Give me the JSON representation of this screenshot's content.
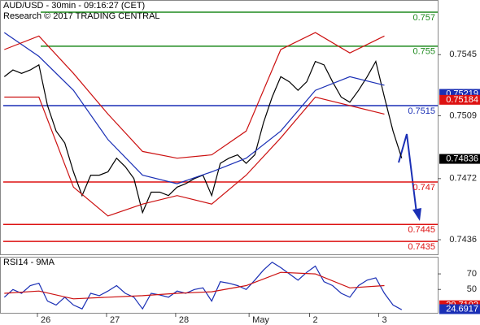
{
  "chart_data": [
    {
      "type": "line",
      "title": "AUD/USD - 30min - 09:16:27 (CET)",
      "subtitle": "Research © 2017 TRADING CENTRAL",
      "xlim": [
        -3,
        301
      ],
      "ylim": [
        0.74274,
        0.75772
      ],
      "yticks": [
        0.7436,
        0.7472,
        0.7509,
        0.7545
      ],
      "series": [
        {
          "color": "#000000",
          "x": [
            0,
            6,
            12,
            18,
            24,
            30,
            36,
            42,
            48,
            54,
            60,
            66,
            72,
            78,
            84,
            90,
            96,
            102,
            108,
            114,
            120,
            126,
            132,
            138,
            144,
            150,
            156,
            162,
            168,
            174,
            180,
            186,
            192,
            198,
            204,
            210,
            216,
            222,
            228,
            234,
            240,
            246,
            252,
            258,
            264,
            270,
            276
          ],
          "values": [
            0.7532,
            0.7536,
            0.7534,
            0.7536,
            0.7539,
            0.7515,
            0.75,
            0.7493,
            0.7476,
            0.7462,
            0.7474,
            0.7474,
            0.7476,
            0.7484,
            0.7479,
            0.7472,
            0.7452,
            0.7464,
            0.7464,
            0.7462,
            0.7467,
            0.7469,
            0.7472,
            0.7474,
            0.7462,
            0.7481,
            0.7484,
            0.7486,
            0.7481,
            0.7486,
            0.7505,
            0.752,
            0.7532,
            0.7529,
            0.7524,
            0.7529,
            0.7541,
            0.7539,
            0.7529,
            0.752,
            0.7517,
            0.7524,
            0.7532,
            0.7541,
            0.752,
            0.75,
            0.7484
          ]
        },
        {
          "color": "#1a2fb5",
          "x": [
            0,
            24,
            48,
            72,
            96,
            120,
            144,
            168,
            192,
            216,
            240,
            264
          ],
          "values": [
            0.7558,
            0.7544,
            0.7524,
            0.7495,
            0.7474,
            0.7469,
            0.7476,
            0.7484,
            0.75,
            0.7524,
            0.7532,
            0.7527
          ]
        },
        {
          "color": "#cc1111",
          "x": [
            0,
            24,
            48,
            72,
            96,
            120,
            144,
            168,
            192,
            216,
            240,
            264
          ],
          "values": [
            0.7548,
            0.7556,
            0.7534,
            0.751,
            0.7488,
            0.7484,
            0.7486,
            0.75,
            0.7548,
            0.7558,
            0.7546,
            0.7556
          ]
        },
        {
          "color": "#cc1111",
          "x": [
            0,
            24,
            48,
            72,
            96,
            120,
            144,
            168,
            192,
            216,
            240,
            264
          ],
          "values": [
            0.752,
            0.752,
            0.7467,
            0.745,
            0.7457,
            0.7462,
            0.7457,
            0.7474,
            0.7496,
            0.752,
            0.7515,
            0.751
          ]
        }
      ],
      "levels": [
        {
          "value": 0.757,
          "color": "#1e8a1e"
        },
        {
          "value": 0.755,
          "color": "#1e8a1e"
        },
        {
          "value": 0.7515,
          "color": "#1a2fb5"
        },
        {
          "value": 0.747,
          "color": "#dd1111"
        },
        {
          "value": 0.7445,
          "color": "#dd1111"
        },
        {
          "value": 0.7435,
          "color": "#dd1111"
        }
      ],
      "price_tags": [
        {
          "value": 0.75219,
          "color": "#1a2fb5"
        },
        {
          "value": 0.75184,
          "color": "#dd1111"
        },
        {
          "value": 0.74836,
          "color": "#000000"
        }
      ]
    },
    {
      "type": "line",
      "title": "RSI14 - 9MA",
      "xlim": [
        -3,
        301
      ],
      "ylim": [
        20,
        92
      ],
      "yticks": [
        50,
        70
      ],
      "xticks": [
        {
          "value": 23,
          "label": "26"
        },
        {
          "value": 71,
          "label": "27"
        },
        {
          "value": 119,
          "label": "28"
        },
        {
          "value": 170,
          "label": "May"
        },
        {
          "value": 212,
          "label": "2"
        },
        {
          "value": 260,
          "label": "3"
        }
      ],
      "series": [
        {
          "color": "#1a2fb5",
          "x": [
            0,
            6,
            12,
            18,
            24,
            30,
            36,
            42,
            48,
            54,
            60,
            66,
            72,
            78,
            84,
            90,
            96,
            102,
            108,
            114,
            120,
            126,
            132,
            138,
            144,
            150,
            156,
            162,
            168,
            174,
            180,
            186,
            192,
            198,
            204,
            210,
            216,
            222,
            228,
            234,
            240,
            246,
            252,
            258,
            264,
            270,
            276
          ],
          "values": [
            40,
            50,
            45,
            55,
            58,
            35,
            30,
            40,
            30,
            25,
            45,
            42,
            48,
            55,
            45,
            40,
            25,
            45,
            43,
            40,
            48,
            45,
            50,
            52,
            35,
            60,
            58,
            55,
            50,
            62,
            75,
            85,
            78,
            70,
            62,
            72,
            80,
            60,
            55,
            45,
            40,
            55,
            62,
            65,
            45,
            30,
            24
          ]
        },
        {
          "color": "#cc1111",
          "x": [
            0,
            24,
            48,
            72,
            96,
            120,
            144,
            168,
            192,
            216,
            240,
            264
          ],
          "values": [
            45,
            48,
            38,
            40,
            42,
            45,
            47,
            55,
            72,
            70,
            52,
            55
          ]
        }
      ],
      "price_tags": [
        {
          "value": 29.7102,
          "color": "#dd1111"
        },
        {
          "value": 24.6917,
          "color": "#1a2fb5"
        }
      ]
    }
  ]
}
